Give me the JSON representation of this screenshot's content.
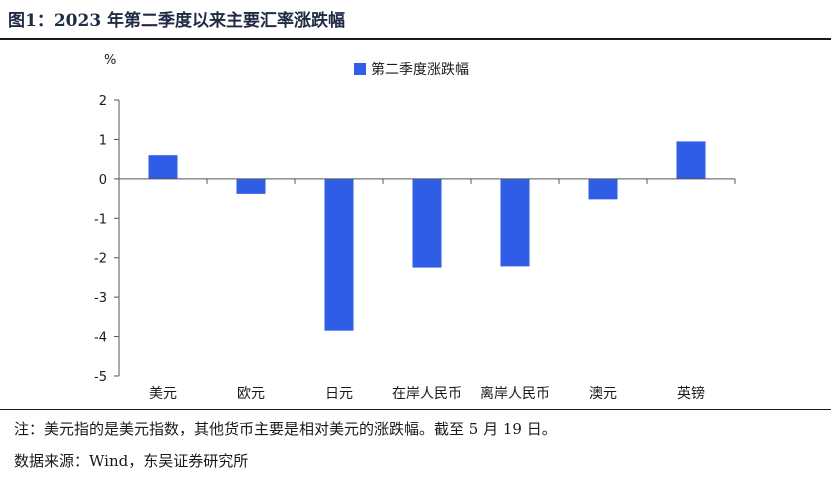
{
  "figure": {
    "title": "图1：2023 年第二季度以来主要汇率涨跌幅",
    "note": "注：美元指的是美元指数，其他货币主要是相对美元的涨跌幅。截至 5 月 19 日。",
    "source": "数据来源：Wind，东吴证券研究所"
  },
  "chart_data": {
    "type": "bar",
    "title": "",
    "unit_label": "%",
    "categories": [
      "美元",
      "欧元",
      "日元",
      "在岸人民币",
      "离岸人民币",
      "澳元",
      "英镑"
    ],
    "series": [
      {
        "name": "第二季度涨跌幅",
        "values": [
          0.6,
          -0.38,
          -3.85,
          -2.25,
          -2.22,
          -0.52,
          0.95
        ]
      }
    ],
    "ylim": [
      -5,
      2
    ],
    "yticks": [
      2,
      1,
      0,
      -1,
      -2,
      -3,
      -4,
      -5
    ],
    "grid": false,
    "legend_position": "top-center",
    "colors": {
      "bar": "#2f5de6",
      "axis": "#555555",
      "text": "#1a1a1a"
    }
  }
}
